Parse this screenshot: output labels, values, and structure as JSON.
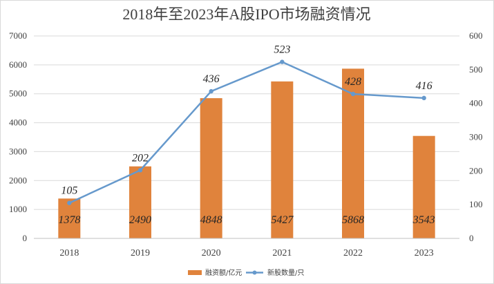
{
  "chart_data": {
    "type": "bar+line",
    "title": "2018年至2023年A股IPO市场融资情况",
    "categories": [
      "2018",
      "2019",
      "2020",
      "2021",
      "2022",
      "2023"
    ],
    "series": [
      {
        "name": "融资额/亿元",
        "type": "bar",
        "axis": "left",
        "values": [
          1378,
          2490,
          4848,
          5427,
          5868,
          3543
        ]
      },
      {
        "name": "新股数量/只",
        "type": "line",
        "axis": "right",
        "values": [
          105,
          202,
          436,
          523,
          428,
          416
        ]
      }
    ],
    "y_left": {
      "min": 0,
      "max": 7000,
      "step": 1000,
      "ticks": [
        "0",
        "1000",
        "2000",
        "3000",
        "4000",
        "5000",
        "6000",
        "7000"
      ]
    },
    "y_right": {
      "min": 0,
      "max": 600,
      "step": 100,
      "ticks": [
        "0",
        "100",
        "200",
        "300",
        "400",
        "500",
        "600"
      ]
    },
    "grid": true,
    "legend_position": "bottom",
    "colors": {
      "bar": "#E0833C",
      "line": "#6699CC"
    }
  }
}
